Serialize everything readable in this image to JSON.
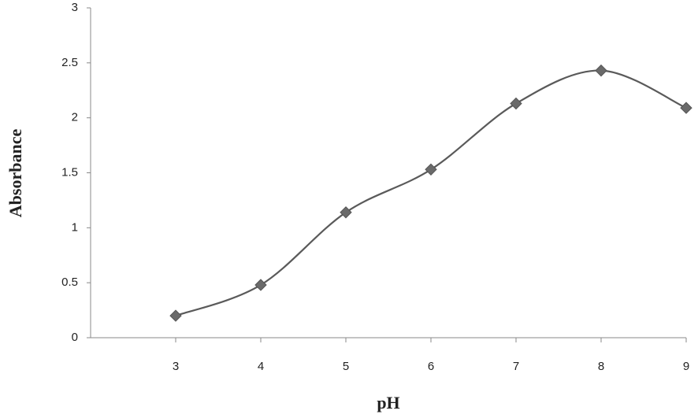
{
  "chart_data": {
    "type": "line",
    "x_label": "pH",
    "y_label": "Absorbance",
    "series": [
      {
        "color": "#5a5a5a",
        "x": [
          3,
          4,
          5,
          6,
          7,
          8,
          9
        ],
        "values": [
          0.2,
          0.48,
          1.14,
          1.53,
          2.13,
          2.43,
          2.09
        ]
      }
    ],
    "xlim": [
      2,
      9
    ],
    "xticks": [
      3,
      4,
      5,
      6,
      7,
      8,
      9
    ],
    "ylim": [
      0,
      3
    ],
    "yticks": [
      0,
      0.5,
      1,
      1.5,
      2,
      2.5,
      3
    ],
    "grid": false,
    "smooth": true,
    "marker": "diamond"
  }
}
